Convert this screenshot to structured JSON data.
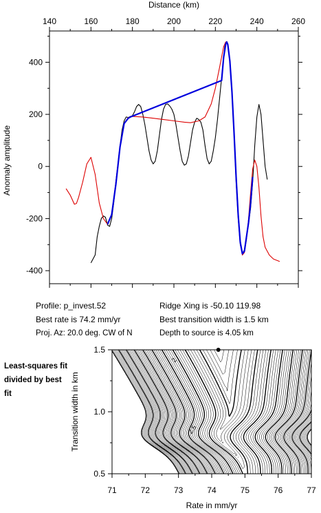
{
  "chart_data": [
    {
      "type": "line",
      "title": "",
      "xlabel": "Distance (km)",
      "ylabel": "Anomaly amplitude",
      "xlim": [
        140,
        260
      ],
      "ylim": [
        -450,
        520
      ],
      "x_ticks": [
        140,
        160,
        180,
        200,
        220,
        240,
        260
      ],
      "y_ticks": [
        -400,
        -200,
        0,
        200,
        400
      ],
      "grid": false,
      "series": [
        {
          "color": "#000000",
          "points": [
            [
              160,
              -370
            ],
            [
              162,
              -340
            ],
            [
              163,
              -270
            ],
            [
              164,
              -230
            ],
            [
              165,
              -200
            ],
            [
              166,
              -190
            ],
            [
              167,
              -195
            ],
            [
              168,
              -225
            ],
            [
              169,
              -230
            ],
            [
              170,
              -200
            ],
            [
              171,
              -140
            ],
            [
              172,
              -60
            ],
            [
              173,
              10
            ],
            [
              174,
              80
            ],
            [
              175,
              140
            ],
            [
              176,
              175
            ],
            [
              177,
              190
            ],
            [
              178,
              188
            ],
            [
              179,
              192
            ],
            [
              180,
              195
            ],
            [
              181,
              210
            ],
            [
              182,
              230
            ],
            [
              183,
              238
            ],
            [
              184,
              230
            ],
            [
              185,
              200
            ],
            [
              186,
              160
            ],
            [
              187,
              110
            ],
            [
              188,
              60
            ],
            [
              189,
              25
            ],
            [
              190,
              10
            ],
            [
              191,
              20
            ],
            [
              192,
              60
            ],
            [
              193,
              120
            ],
            [
              194,
              180
            ],
            [
              195,
              220
            ],
            [
              196,
              238
            ],
            [
              197,
              240
            ],
            [
              198,
              232
            ],
            [
              199,
              220
            ],
            [
              200,
              200
            ],
            [
              201,
              160
            ],
            [
              202,
              110
            ],
            [
              203,
              60
            ],
            [
              204,
              20
            ],
            [
              205,
              5
            ],
            [
              206,
              10
            ],
            [
              207,
              40
            ],
            [
              208,
              90
            ],
            [
              209,
              140
            ],
            [
              210,
              170
            ],
            [
              211,
              185
            ],
            [
              212,
              180
            ],
            [
              213,
              170
            ],
            [
              214,
              140
            ],
            [
              215,
              80
            ],
            [
              216,
              30
            ],
            [
              217,
              10
            ],
            [
              218,
              20
            ],
            [
              219,
              60
            ],
            [
              220,
              110
            ],
            [
              221,
              180
            ],
            [
              222,
              260
            ],
            [
              223,
              340
            ],
            [
              224,
              420
            ],
            [
              224.5,
              460
            ],
            [
              225,
              470
            ],
            [
              225.5,
              478
            ],
            [
              226,
              465
            ],
            [
              227,
              400
            ],
            [
              228,
              280
            ],
            [
              229,
              120
            ],
            [
              230,
              -60
            ],
            [
              231,
              -200
            ],
            [
              232,
              -300
            ],
            [
              233,
              -335
            ],
            [
              234,
              -320
            ],
            [
              235,
              -270
            ],
            [
              236,
              -220
            ],
            [
              237,
              -160
            ],
            [
              238,
              -60
            ],
            [
              239,
              80
            ],
            [
              240,
              190
            ],
            [
              241,
              238
            ],
            [
              242,
              200
            ],
            [
              243,
              100
            ],
            [
              244,
              0
            ],
            [
              245,
              -50
            ]
          ]
        },
        {
          "color": "#dd0000",
          "points": [
            [
              148,
              -85
            ],
            [
              150,
              -110
            ],
            [
              152,
              -145
            ],
            [
              153,
              -142
            ],
            [
              154,
              -120
            ],
            [
              156,
              -60
            ],
            [
              158,
              10
            ],
            [
              160,
              35
            ],
            [
              162,
              -30
            ],
            [
              164,
              -140
            ],
            [
              166,
              -200
            ],
            [
              168,
              -222
            ],
            [
              170,
              -185
            ],
            [
              172,
              -60
            ],
            [
              174,
              80
            ],
            [
              176,
              165
            ],
            [
              178,
              188
            ],
            [
              180,
              192
            ],
            [
              185,
              190
            ],
            [
              190,
              185
            ],
            [
              195,
              180
            ],
            [
              200,
              175
            ],
            [
              205,
              170
            ],
            [
              208,
              168
            ],
            [
              212,
              175
            ],
            [
              215,
              190
            ],
            [
              218,
              240
            ],
            [
              220,
              300
            ],
            [
              222,
              380
            ],
            [
              223,
              420
            ],
            [
              224,
              460
            ],
            [
              225,
              478
            ],
            [
              226,
              470
            ],
            [
              227,
              410
            ],
            [
              228,
              290
            ],
            [
              229,
              140
            ],
            [
              230,
              -30
            ],
            [
              231,
              -180
            ],
            [
              232,
              -290
            ],
            [
              233,
              -340
            ],
            [
              234,
              -330
            ],
            [
              235,
              -280
            ],
            [
              236,
              -200
            ],
            [
              237,
              -100
            ],
            [
              238,
              -10
            ],
            [
              239,
              25
            ],
            [
              240,
              0
            ],
            [
              241,
              -80
            ],
            [
              242,
              -190
            ],
            [
              243,
              -270
            ],
            [
              244,
              -310
            ],
            [
              246,
              -340
            ],
            [
              248,
              -355
            ],
            [
              251,
              -365
            ]
          ]
        },
        {
          "color": "#0000dd",
          "points": [
            [
              168,
              -222
            ],
            [
              170,
              -185
            ],
            [
              172,
              -70
            ],
            [
              174,
              75
            ],
            [
              176,
              165
            ],
            [
              178,
              185
            ],
            [
              179,
              190
            ],
            [
              223,
              330
            ],
            [
              224,
              420
            ],
            [
              225,
              470
            ],
            [
              225.5,
              478
            ],
            [
              226,
              468
            ],
            [
              227,
              405
            ],
            [
              228,
              285
            ],
            [
              229,
              130
            ],
            [
              230,
              -40
            ],
            [
              231,
              -185
            ],
            [
              232,
              -290
            ],
            [
              233,
              -335
            ],
            [
              234,
              -325
            ],
            [
              235,
              -270
            ],
            [
              236,
              -215
            ],
            [
              237,
              -140
            ],
            [
              238,
              -40
            ]
          ]
        }
      ],
      "annotations": {
        "profile": "Profile: p_invest.52",
        "best_rate": "Best rate is 74.2 mm/yr",
        "proj_az": "Proj. Az: 20.0 deg. CW of N",
        "ridge_xing": "Ridge Xing is -50.10 119.98",
        "best_width": "Best transition width is 1.5 km",
        "depth": "Depth to source is   4.05 km"
      }
    },
    {
      "type": "heatmap",
      "title": "Least-squares fit divided by best fit",
      "xlabel": "Rate in mm/yr",
      "ylabel": "Transition width in km",
      "xlim": [
        71,
        77
      ],
      "ylim": [
        0.5,
        1.5
      ],
      "x_ticks": [
        71,
        72,
        73,
        74,
        75,
        76,
        77
      ],
      "y_ticks": [
        0.5,
        1.0,
        1.5
      ],
      "best_fit": {
        "rate": 74.2,
        "width": 1.5
      },
      "contour_labels": [
        {
          "text": "2",
          "x": 72.85,
          "y": 1.42
        },
        {
          "text": "2.5",
          "x": 73.4,
          "y": 0.86
        }
      ]
    }
  ]
}
